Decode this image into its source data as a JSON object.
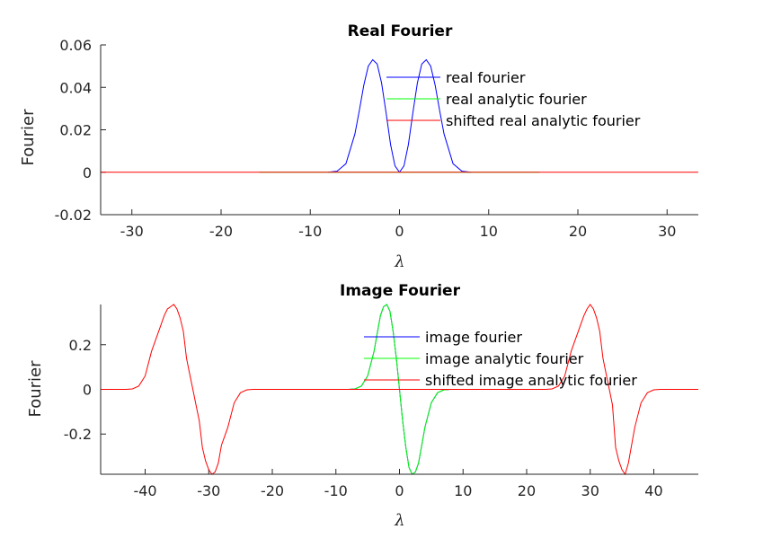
{
  "chart_data": [
    {
      "type": "line",
      "title": "Real Fourier",
      "xlabel": "λ",
      "ylabel": "Fourier",
      "xlim": [
        -33.5,
        33.5
      ],
      "ylim": [
        -0.02,
        0.06
      ],
      "xticks": [
        -30,
        -20,
        -10,
        0,
        10,
        20,
        30
      ],
      "xtick_labels": [
        "-30",
        "-20",
        "-10",
        "0",
        "10",
        "20",
        "30"
      ],
      "yticks": [
        -0.02,
        0,
        0.02,
        0.04,
        0.06
      ],
      "ytick_labels": [
        "-0.02",
        "0",
        "0.02",
        "0.04",
        "0.06"
      ],
      "grid": false,
      "legend_position": "top-right",
      "series": [
        {
          "name": "real fourier",
          "color": "#0000ff",
          "x": [
            -8,
            -7,
            -6,
            -5,
            -4.5,
            -4,
            -3.5,
            -3,
            -2.5,
            -2,
            -1.5,
            -1,
            -0.5,
            0,
            0.5,
            1,
            1.5,
            2,
            2.5,
            3,
            3.5,
            4,
            4.5,
            5,
            6,
            7,
            8
          ],
          "y": [
            0.0,
            0.0005,
            0.004,
            0.018,
            0.029,
            0.041,
            0.05,
            0.053,
            0.051,
            0.042,
            0.028,
            0.013,
            0.003,
            0.0,
            0.003,
            0.013,
            0.028,
            0.042,
            0.051,
            0.053,
            0.05,
            0.041,
            0.029,
            0.018,
            0.004,
            0.0005,
            0.0
          ]
        },
        {
          "name": "real analytic fourier",
          "color": "#00ff00",
          "x": [
            -15.7,
            15.7
          ],
          "y": [
            0,
            0
          ]
        },
        {
          "name": "shifted real analytic fourier",
          "color": "#ff0000",
          "x": [
            -33.5,
            33.5
          ],
          "y": [
            0,
            0
          ]
        }
      ]
    },
    {
      "type": "line",
      "title": "Image Fourier",
      "xlabel": "λ",
      "ylabel": "Fourier",
      "xlim": [
        -47,
        47
      ],
      "ylim": [
        -0.38,
        0.38
      ],
      "xticks": [
        -40,
        -30,
        -20,
        -10,
        0,
        10,
        20,
        30,
        40
      ],
      "xtick_labels": [
        "-40",
        "-30",
        "-20",
        "-10",
        "0",
        "10",
        "20",
        "30",
        "40"
      ],
      "yticks": [
        -0.2,
        0,
        0.2
      ],
      "ytick_labels": [
        "-0.2",
        "0",
        "0.2"
      ],
      "grid": false,
      "legend_position": "top-right",
      "series": [
        {
          "name": "image fourier",
          "color": "#0000ff",
          "x": [
            -8,
            -7,
            -6,
            -5,
            -4,
            -3.5,
            -3,
            -2.5,
            -2,
            -1.5,
            -1,
            -0.5,
            0,
            0.5,
            1,
            1.5,
            2,
            2.5,
            3,
            3.5,
            4,
            5,
            6,
            7,
            8
          ],
          "y": [
            0.0,
            0.002,
            0.015,
            0.06,
            0.17,
            0.25,
            0.33,
            0.37,
            0.38,
            0.35,
            0.26,
            0.14,
            0.0,
            -0.14,
            -0.26,
            -0.35,
            -0.38,
            -0.37,
            -0.33,
            -0.25,
            -0.17,
            -0.06,
            -0.015,
            -0.002,
            0.0
          ]
        },
        {
          "name": "image analytic fourier",
          "color": "#00ff00",
          "x": [
            -12,
            -8,
            -7,
            -6,
            -5,
            -4,
            -3.5,
            -3,
            -2.5,
            -2,
            -1.5,
            -1,
            -0.5,
            0,
            0.5,
            1,
            1.5,
            2,
            2.5,
            3,
            3.5,
            4,
            5,
            6,
            7,
            8,
            12
          ],
          "y": [
            0.0,
            0.0,
            0.002,
            0.015,
            0.06,
            0.17,
            0.25,
            0.33,
            0.37,
            0.38,
            0.35,
            0.26,
            0.14,
            0.0,
            -0.14,
            -0.26,
            -0.35,
            -0.38,
            -0.37,
            -0.33,
            -0.25,
            -0.17,
            -0.06,
            -0.015,
            -0.002,
            0.0,
            0.0
          ]
        },
        {
          "name": "shifted image analytic fourier",
          "color": "#ff0000",
          "x": [
            -47,
            -43,
            -42,
            -41,
            -40,
            -39,
            -38,
            -37.5,
            -37,
            -36.5,
            -36,
            -35.5,
            -35,
            -34.5,
            -34,
            -33.5,
            -33,
            -32.5,
            -32,
            -31.5,
            -31,
            -30.5,
            -30,
            -29.5,
            -29,
            -28.5,
            -28,
            -27,
            -26,
            -25,
            -24,
            -23,
            -20,
            20,
            23,
            24,
            25,
            26,
            27,
            27.5,
            28,
            28.5,
            29,
            29.5,
            30,
            30.5,
            31,
            31.5,
            32,
            32.5,
            33,
            33.5,
            34,
            34.5,
            35,
            35.5,
            36,
            37,
            38,
            39,
            40,
            41,
            43,
            47
          ],
          "y": [
            0.0,
            0.0,
            0.002,
            0.015,
            0.06,
            0.17,
            0.25,
            0.29,
            0.33,
            0.36,
            0.37,
            0.38,
            0.36,
            0.32,
            0.26,
            0.14,
            0.07,
            0.0,
            -0.07,
            -0.14,
            -0.26,
            -0.32,
            -0.36,
            -0.38,
            -0.37,
            -0.33,
            -0.25,
            -0.17,
            -0.06,
            -0.015,
            -0.002,
            0.0,
            0.0,
            0.0,
            0.0,
            0.002,
            0.015,
            0.06,
            0.17,
            0.21,
            0.25,
            0.29,
            0.33,
            0.36,
            0.38,
            0.36,
            0.32,
            0.26,
            0.14,
            0.07,
            0.0,
            -0.07,
            -0.26,
            -0.32,
            -0.36,
            -0.38,
            -0.33,
            -0.17,
            -0.06,
            -0.015,
            -0.002,
            0.0,
            0.0,
            0.0
          ]
        }
      ]
    }
  ]
}
